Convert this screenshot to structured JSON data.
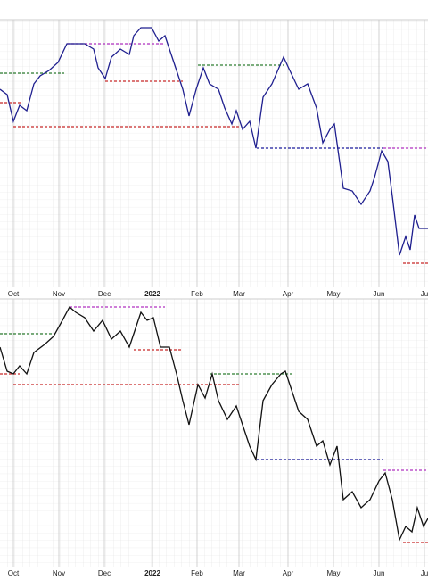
{
  "chart_data": [
    {
      "type": "line",
      "color": "#1f1f8f",
      "x": [
        0,
        8,
        15,
        22,
        30,
        38,
        45,
        55,
        65,
        75,
        85,
        95,
        105,
        110,
        118,
        125,
        135,
        145,
        150,
        158,
        170,
        178,
        185,
        195,
        205,
        212,
        220,
        228,
        235,
        245,
        252,
        260,
        265,
        272,
        280,
        287,
        295,
        305,
        318,
        325,
        335,
        345,
        355,
        362,
        370,
        375,
        385,
        395,
        405,
        415,
        420,
        428,
        435,
        440,
        448,
        455,
        460,
        465,
        470,
        480
      ],
      "values": [
        74,
        72,
        62,
        68,
        66,
        76,
        79,
        81,
        84,
        91,
        91,
        91,
        89,
        82,
        78,
        86,
        89,
        87,
        94,
        97,
        97,
        92,
        94,
        84,
        74,
        64,
        74,
        82,
        76,
        74,
        67,
        61,
        66,
        59,
        62,
        52,
        71,
        76,
        86,
        81,
        74,
        76,
        67,
        54,
        59,
        61,
        37,
        36,
        31,
        36,
        41,
        51,
        47,
        34,
        12,
        19,
        14,
        27,
        22,
        22
      ],
      "xlim": [
        0,
        480
      ],
      "ylim": [
        0,
        100
      ],
      "xticks": [
        {
          "value": 15,
          "label": "Oct"
        },
        {
          "value": 66,
          "label": "Nov"
        },
        {
          "value": 117,
          "label": "Dec"
        },
        {
          "value": 171,
          "label": "2022"
        },
        {
          "value": 221,
          "label": "Feb"
        },
        {
          "value": 268,
          "label": "Mar"
        },
        {
          "value": 323,
          "label": "Apr"
        },
        {
          "value": 374,
          "label": "May"
        },
        {
          "value": 425,
          "label": "Jun"
        },
        {
          "value": 476,
          "label": "Ju"
        }
      ],
      "levels": [
        {
          "from": 0,
          "to": 72,
          "value": 80,
          "color": "#2e7d32"
        },
        {
          "from": 0,
          "to": 25,
          "value": 69,
          "color": "#c62828"
        },
        {
          "from": 15,
          "to": 270,
          "value": 60,
          "color": "#c62828"
        },
        {
          "from": 75,
          "to": 185,
          "value": 91,
          "color": "#b030c0"
        },
        {
          "from": 118,
          "to": 205,
          "value": 77,
          "color": "#c62828"
        },
        {
          "from": 222,
          "to": 318,
          "value": 83,
          "color": "#2e7d32"
        },
        {
          "from": 288,
          "to": 430,
          "value": 52,
          "color": "#1a1a9c"
        },
        {
          "from": 430,
          "to": 480,
          "value": 52,
          "color": "#b030c0"
        },
        {
          "from": 452,
          "to": 480,
          "value": 9,
          "color": "#c62828"
        }
      ]
    },
    {
      "type": "line",
      "color": "#111111",
      "x": [
        0,
        8,
        15,
        22,
        30,
        38,
        50,
        60,
        70,
        78,
        85,
        95,
        105,
        115,
        125,
        135,
        145,
        150,
        158,
        165,
        172,
        180,
        190,
        198,
        205,
        212,
        222,
        230,
        238,
        245,
        255,
        265,
        272,
        280,
        287,
        295,
        305,
        315,
        320,
        328,
        335,
        345,
        355,
        362,
        370,
        378,
        385,
        395,
        405,
        415,
        425,
        432,
        440,
        448,
        455,
        462,
        468,
        475,
        480
      ],
      "values": [
        82,
        73,
        72,
        75,
        72,
        80,
        83,
        86,
        92,
        97,
        95,
        93,
        88,
        92,
        85,
        88,
        82,
        87,
        95,
        92,
        93,
        82,
        82,
        72,
        62,
        53,
        68,
        63,
        72,
        62,
        55,
        60,
        53,
        45,
        40,
        62,
        68,
        72,
        73,
        65,
        58,
        55,
        45,
        47,
        38,
        45,
        25,
        28,
        22,
        25,
        32,
        35,
        25,
        10,
        15,
        13,
        22,
        15,
        18
      ],
      "xlim": [
        0,
        480
      ],
      "ylim": [
        0,
        100
      ],
      "xticks": [
        {
          "value": 15,
          "label": "Oct"
        },
        {
          "value": 66,
          "label": "Nov"
        },
        {
          "value": 117,
          "label": "Dec"
        },
        {
          "value": 171,
          "label": "2022"
        },
        {
          "value": 221,
          "label": "Feb"
        },
        {
          "value": 268,
          "label": "Mar"
        },
        {
          "value": 323,
          "label": "Apr"
        },
        {
          "value": 374,
          "label": "May"
        },
        {
          "value": 425,
          "label": "Jun"
        },
        {
          "value": 476,
          "label": "Ju"
        }
      ],
      "levels": [
        {
          "from": 0,
          "to": 62,
          "value": 87,
          "color": "#2e7d32"
        },
        {
          "from": 0,
          "to": 22,
          "value": 72,
          "color": "#c62828"
        },
        {
          "from": 15,
          "to": 270,
          "value": 68,
          "color": "#c62828"
        },
        {
          "from": 78,
          "to": 185,
          "value": 97,
          "color": "#b030c0"
        },
        {
          "from": 150,
          "to": 205,
          "value": 81,
          "color": "#c62828"
        },
        {
          "from": 235,
          "to": 330,
          "value": 72,
          "color": "#2e7d32"
        },
        {
          "from": 288,
          "to": 430,
          "value": 40,
          "color": "#1a1a9c"
        },
        {
          "from": 430,
          "to": 480,
          "value": 36,
          "color": "#b030c0"
        },
        {
          "from": 452,
          "to": 480,
          "value": 9,
          "color": "#c62828"
        }
      ]
    }
  ]
}
